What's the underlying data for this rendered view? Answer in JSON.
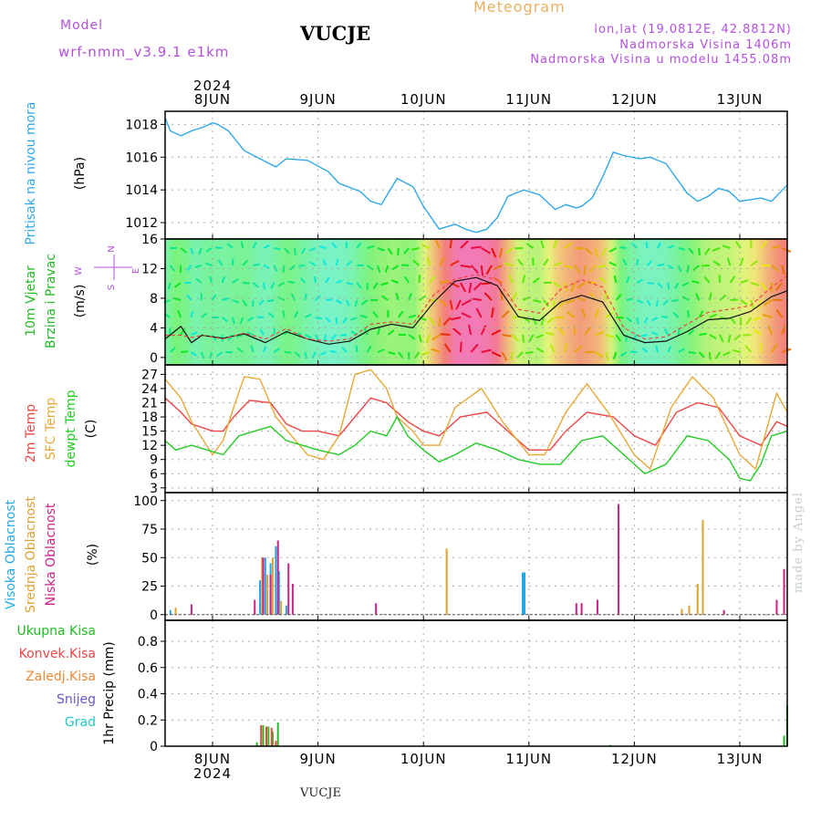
{
  "header": {
    "model_label": "Model",
    "model_name": "wrf-nmm_v3.9.1 e1km",
    "station": "VUCJE",
    "meteogram_label": "Meteogram",
    "lonlat": "lon,lat (19.0812E, 42.8812N)",
    "elevation": "Nadmorska Visina 1406m",
    "model_elevation": "Nadmorska Visina u modelu 1455.08m",
    "made_by": "made by Angel",
    "footer_station": "VUCJE"
  },
  "colors": {
    "pressure": "#2ea8e8",
    "temp2m": "#ee4444",
    "sfc_temp": "#e8a838",
    "dewpoint": "#22cc22",
    "cloud_high": "#22a8e8",
    "cloud_mid": "#e0a030",
    "cloud_low": "#cc2288",
    "precip_total": "#22bb22",
    "precip_conv": "#ee4444",
    "precip_frozen": "#ee8833",
    "snow": "#6a5acd",
    "graupel": "#22c8c8",
    "label_purple": "#b450e0"
  },
  "chart_data": {
    "time_axis": {
      "year": "2024",
      "ticks": [
        "8JUN",
        "9JUN",
        "10JUN",
        "11JUN",
        "12JUN",
        "13JUN"
      ],
      "range_days": [
        -0.45,
        5.45
      ]
    },
    "panels": [
      {
        "id": "pressure",
        "type": "line",
        "labels": [
          "Pritisak na nivou mora",
          "(hPa)"
        ],
        "ylim": [
          1011,
          1018.8
        ],
        "yticks": [
          1012,
          1014,
          1016,
          1018
        ],
        "series": [
          {
            "name": "Pritisak na nivou mora",
            "t": [
              -0.45,
              -0.4,
              -0.3,
              -0.2,
              -0.1,
              0.0,
              0.05,
              0.15,
              0.3,
              0.45,
              0.6,
              0.7,
              0.9,
              1.1,
              1.2,
              1.4,
              1.5,
              1.6,
              1.75,
              1.9,
              2.0,
              2.15,
              2.3,
              2.4,
              2.5,
              2.6,
              2.7,
              2.8,
              2.95,
              3.1,
              3.25,
              3.35,
              3.45,
              3.5,
              3.6,
              3.7,
              3.8,
              3.9,
              4.05,
              4.15,
              4.3,
              4.5,
              4.6,
              4.7,
              4.8,
              4.9,
              5.0,
              5.1,
              5.2,
              5.3,
              5.45
            ],
            "values": [
              1018.4,
              1017.6,
              1017.3,
              1017.6,
              1017.8,
              1018.1,
              1018.0,
              1017.6,
              1016.4,
              1015.9,
              1015.4,
              1015.9,
              1015.8,
              1015.1,
              1014.4,
              1013.9,
              1013.3,
              1013.1,
              1014.7,
              1014.2,
              1013.0,
              1011.6,
              1011.9,
              1011.6,
              1011.4,
              1011.6,
              1012.3,
              1013.6,
              1014.0,
              1013.7,
              1012.8,
              1013.1,
              1012.9,
              1013.0,
              1013.5,
              1014.8,
              1016.3,
              1016.1,
              1015.9,
              1016.0,
              1015.6,
              1013.8,
              1013.3,
              1013.6,
              1014.1,
              1013.9,
              1013.3,
              1013.4,
              1013.5,
              1013.3,
              1014.3
            ]
          }
        ]
      },
      {
        "id": "wind",
        "type": "line",
        "labels": [
          "10m Vjetar",
          "Brzina i Pravac",
          "(m/s)"
        ],
        "compass": [
          "N",
          "W",
          "E",
          "S"
        ],
        "ylim": [
          -1,
          16
        ],
        "yticks": [
          0,
          4,
          8,
          12,
          16
        ],
        "series": [
          {
            "name": "Brzina",
            "t": [
              -0.45,
              -0.3,
              -0.2,
              -0.1,
              0.1,
              0.3,
              0.5,
              0.7,
              0.9,
              1.1,
              1.3,
              1.5,
              1.7,
              1.9,
              2.1,
              2.3,
              2.5,
              2.7,
              2.9,
              3.1,
              3.3,
              3.5,
              3.7,
              3.9,
              4.1,
              4.3,
              4.5,
              4.7,
              4.9,
              5.1,
              5.3,
              5.45
            ],
            "values": [
              2.5,
              4.2,
              2.0,
              3.0,
              2.6,
              3.2,
              2.0,
              3.5,
              2.5,
              1.8,
              2.2,
              3.8,
              4.5,
              4.0,
              7.5,
              10.3,
              10.8,
              9.7,
              5.5,
              5.0,
              7.5,
              8.4,
              7.5,
              3.0,
              2.0,
              2.2,
              3.5,
              5.1,
              5.3,
              6.2,
              8.2,
              9.0
            ]
          },
          {
            "name": "Udari",
            "t": [
              -0.45,
              -0.3,
              -0.2,
              -0.1,
              0.1,
              0.3,
              0.5,
              0.7,
              0.9,
              1.1,
              1.3,
              1.5,
              1.7,
              1.9,
              2.1,
              2.3,
              2.5,
              2.7,
              2.9,
              3.1,
              3.3,
              3.5,
              3.7,
              3.9,
              4.1,
              4.3,
              4.5,
              4.7,
              4.9,
              5.1,
              5.3,
              5.45
            ],
            "values": [
              3.0,
              3.0,
              2.7,
              3.0,
              2.5,
              3.3,
              2.5,
              3.9,
              2.5,
              2.2,
              2.5,
              4.5,
              4.8,
              4.5,
              8.5,
              10.6,
              11.2,
              10.5,
              6.5,
              6.0,
              9.2,
              10.5,
              9.5,
              4.0,
              2.5,
              2.8,
              4.5,
              6.1,
              6.5,
              7.0,
              9.5,
              11.0
            ]
          }
        ]
      },
      {
        "id": "temperature",
        "type": "line",
        "labels": [
          "2m Temp",
          "SFC Temp",
          "dewpt Temp",
          "(C)"
        ],
        "ylim": [
          2,
          29
        ],
        "yticks": [
          3,
          6,
          9,
          12,
          15,
          18,
          21,
          24,
          27
        ],
        "series": [
          {
            "name": "2m Temp",
            "t": [
              -0.45,
              -0.3,
              -0.2,
              0.0,
              0.1,
              0.2,
              0.35,
              0.55,
              0.7,
              0.85,
              1.0,
              1.2,
              1.35,
              1.5,
              1.65,
              1.85,
              2.0,
              2.15,
              2.35,
              2.6,
              2.8,
              3.0,
              3.2,
              3.35,
              3.55,
              3.8,
              4.0,
              4.2,
              4.4,
              4.6,
              4.8,
              5.0,
              5.2,
              5.35,
              5.45
            ],
            "values": [
              22.0,
              19.0,
              16.5,
              15.0,
              15.0,
              18.0,
              21.5,
              21.0,
              16.5,
              15.0,
              15.0,
              14.0,
              18.0,
              22.0,
              21.0,
              17.0,
              15.0,
              14.0,
              18.0,
              19.0,
              15.0,
              11.0,
              11.0,
              15.0,
              19.0,
              18.0,
              14.0,
              12.0,
              19.0,
              21.0,
              20.0,
              14.0,
              12.0,
              17.0,
              16.0
            ]
          },
          {
            "name": "SFC Temp",
            "t": [
              -0.45,
              -0.3,
              -0.2,
              0.0,
              0.1,
              0.2,
              0.3,
              0.45,
              0.6,
              0.75,
              0.9,
              1.05,
              1.2,
              1.35,
              1.5,
              1.65,
              1.75,
              1.9,
              2.0,
              2.15,
              2.3,
              2.55,
              2.75,
              3.0,
              3.15,
              3.35,
              3.55,
              3.75,
              4.0,
              4.15,
              4.35,
              4.55,
              4.75,
              5.0,
              5.15,
              5.35,
              5.45
            ],
            "values": [
              26.0,
              22.0,
              17.0,
              10.0,
              13.0,
              20.0,
              26.5,
              26.0,
              18.0,
              14.0,
              10.0,
              9.0,
              14.0,
              27.0,
              28.0,
              24.0,
              18.0,
              15.0,
              12.0,
              12.0,
              20.0,
              24.0,
              17.0,
              10.0,
              10.0,
              19.0,
              25.0,
              19.0,
              10.0,
              7.0,
              20.0,
              26.5,
              22.0,
              10.0,
              7.0,
              23.0,
              19.0
            ]
          },
          {
            "name": "dewpt Temp",
            "t": [
              -0.45,
              -0.35,
              -0.2,
              -0.05,
              0.1,
              0.25,
              0.4,
              0.55,
              0.7,
              0.85,
              1.0,
              1.2,
              1.35,
              1.5,
              1.65,
              1.75,
              1.85,
              2.0,
              2.15,
              2.3,
              2.5,
              2.7,
              2.9,
              3.1,
              3.3,
              3.5,
              3.7,
              3.9,
              4.1,
              4.3,
              4.5,
              4.7,
              4.9,
              5.0,
              5.1,
              5.2,
              5.3,
              5.45
            ],
            "values": [
              13.0,
              11.0,
              12.0,
              11.0,
              10.0,
              14.0,
              15.0,
              16.0,
              13.0,
              12.0,
              11.0,
              10.0,
              12.0,
              15.0,
              14.0,
              18.0,
              14.0,
              11.0,
              8.5,
              10.0,
              12.5,
              11.0,
              9.0,
              8.0,
              8.0,
              13.0,
              14.0,
              10.0,
              6.0,
              8.0,
              14.0,
              13.0,
              9.0,
              5.0,
              4.5,
              8.0,
              14.0,
              15.0
            ]
          }
        ]
      },
      {
        "id": "clouds",
        "type": "bar",
        "labels": [
          "Visoka Oblacnost",
          "Srednja Oblacnost",
          "Niska Oblacnost",
          "(%)"
        ],
        "ylim": [
          -5,
          107
        ],
        "yticks": [
          0,
          25,
          50,
          75,
          100
        ],
        "series": [
          {
            "name": "Visoka Oblacnost",
            "t": [
              -0.4,
              0.45,
              0.5,
              0.55,
              0.6,
              0.63,
              0.7,
              2.95
            ],
            "values": [
              4,
              30,
              50,
              45,
              60,
              38,
              8,
              37
            ]
          },
          {
            "name": "Srednja Oblacnost",
            "t": [
              -0.35,
              0.47,
              0.52,
              0.57,
              0.65,
              2.22,
              4.45,
              4.52,
              4.6,
              4.65
            ],
            "values": [
              6,
              50,
              35,
              50,
              12,
              58,
              5,
              8,
              27,
              83
            ]
          },
          {
            "name": "Niska Oblacnost",
            "t": [
              -0.2,
              0.4,
              0.48,
              0.55,
              0.62,
              0.72,
              0.76,
              1.55,
              3.45,
              3.5,
              3.65,
              3.85,
              4.85,
              5.35,
              5.42
            ],
            "values": [
              9,
              13,
              50,
              35,
              65,
              45,
              27,
              10,
              10,
              10,
              13,
              97,
              4,
              13,
              40
            ]
          }
        ]
      },
      {
        "id": "precip",
        "type": "bar",
        "labels": [
          "Ukupna Kisa",
          "Konvek.Kisa",
          "Zaledj.Kisa",
          "Snijeg",
          "Grad",
          "1hr Precip (mm)"
        ],
        "ylim": [
          0,
          0.96
        ],
        "yticks": [
          0,
          0.2,
          0.4,
          0.6,
          0.8
        ],
        "series": [
          {
            "name": "Ukupna Kisa",
            "t": [
              0.42,
              0.48,
              0.53,
              0.57,
              0.62,
              3.77,
              5.42,
              5.45
            ],
            "values": [
              0.03,
              0.16,
              0.15,
              0.11,
              0.18,
              0.01,
              0.08,
              0.31
            ]
          },
          {
            "name": "Konvek.Kisa",
            "t": [
              0.46,
              0.51,
              0.56,
              0.6
            ],
            "values": [
              0.16,
              0.15,
              0.14,
              0.04
            ]
          }
        ]
      }
    ]
  }
}
